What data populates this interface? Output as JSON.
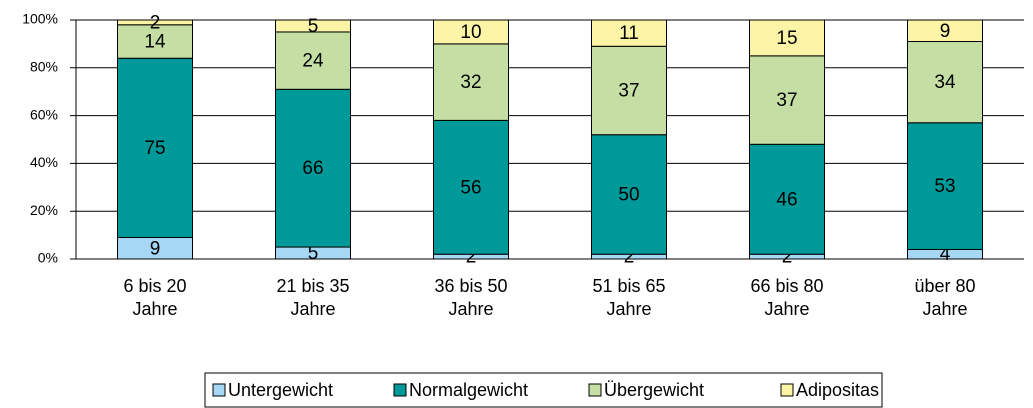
{
  "chart_data": {
    "type": "stacked_bar",
    "categories": [
      [
        "6 bis 20",
        "Jahre"
      ],
      [
        "21 bis 35",
        "Jahre"
      ],
      [
        "36 bis 50",
        "Jahre"
      ],
      [
        "51 bis 65",
        "Jahre"
      ],
      [
        "66 bis 80",
        "Jahre"
      ],
      [
        "über 80",
        "Jahre"
      ]
    ],
    "series": [
      {
        "name": "Untergewicht",
        "color": "#a6d8f5",
        "values": [
          9,
          5,
          2,
          2,
          2,
          4
        ]
      },
      {
        "name": "Normalgewicht",
        "color": "#009999",
        "values": [
          75,
          66,
          56,
          50,
          46,
          53
        ]
      },
      {
        "name": "Übergewicht",
        "color": "#c4dea4",
        "values": [
          14,
          24,
          32,
          37,
          37,
          34
        ]
      },
      {
        "name": "Adipositas",
        "color": "#fbf3a6",
        "values": [
          2,
          5,
          10,
          11,
          15,
          9
        ]
      }
    ],
    "ylim": [
      0,
      100
    ],
    "yticks": [
      {
        "value": 0,
        "label": "0%"
      },
      {
        "value": 20,
        "label": "20%"
      },
      {
        "value": 40,
        "label": "40%"
      },
      {
        "value": 60,
        "label": "60%"
      },
      {
        "value": 80,
        "label": "80%"
      },
      {
        "value": 100,
        "label": "100%"
      }
    ],
    "grid": true,
    "legend": "bottom"
  }
}
